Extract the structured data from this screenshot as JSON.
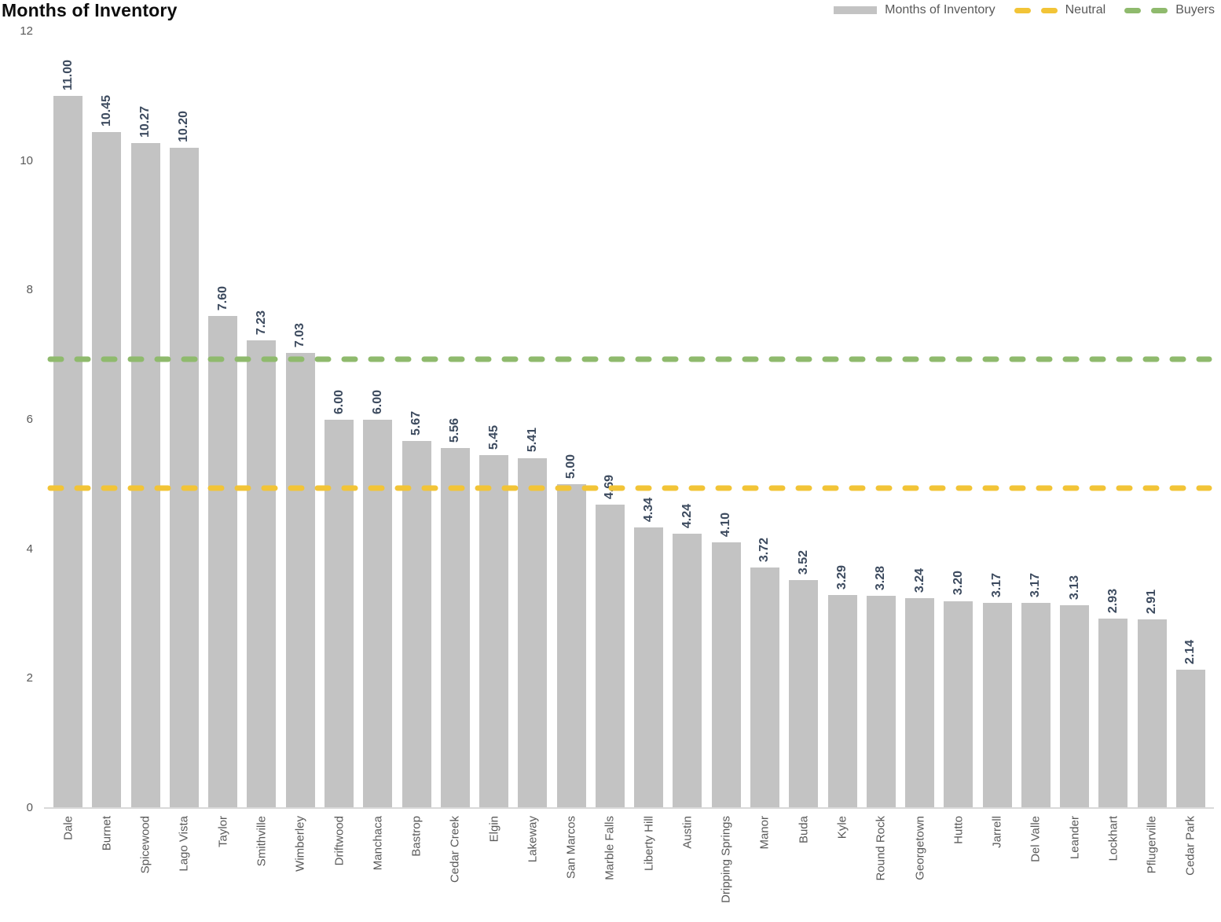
{
  "title": "Months of Inventory",
  "legend": [
    {
      "label": "Months of Inventory",
      "type": "bar-swatch",
      "color": "#c3c3c3"
    },
    {
      "label": "Neutral",
      "type": "dash",
      "color": "#f2c437"
    },
    {
      "label": "Buyers",
      "type": "dash",
      "color": "#8fba6d"
    }
  ],
  "chart_data": {
    "type": "bar",
    "title": "Months of Inventory",
    "categories": [
      "Dale",
      "Burnet",
      "Spicewood",
      "Lago Vista",
      "Taylor",
      "Smithville",
      "Wimberley",
      "Driftwood",
      "Manchaca",
      "Bastrop",
      "Cedar Creek",
      "Elgin",
      "Lakeway",
      "San Marcos",
      "Marble Falls",
      "Liberty Hill",
      "Austin",
      "Dripping Springs",
      "Manor",
      "Buda",
      "Kyle",
      "Round Rock",
      "Georgetown",
      "Hutto",
      "Jarrell",
      "Del Valle",
      "Leander",
      "Lockhart",
      "Pflugerville",
      "Cedar Park"
    ],
    "values": [
      11.0,
      10.45,
      10.27,
      10.2,
      7.6,
      7.23,
      7.03,
      6.0,
      6.0,
      5.67,
      5.56,
      5.45,
      5.41,
      5.0,
      4.69,
      4.34,
      4.24,
      4.1,
      3.72,
      3.52,
      3.29,
      3.28,
      3.24,
      3.2,
      3.17,
      3.17,
      3.13,
      2.93,
      2.91,
      2.14
    ],
    "value_label_decimals": 2,
    "xlabel": "",
    "ylabel": "",
    "ylim": [
      0,
      12
    ],
    "yticks": [
      0,
      2,
      4,
      6,
      8,
      10,
      12
    ],
    "grid": false,
    "bar_color": "#c3c3c3",
    "value_label_color": "#3d4b5f",
    "axis_text_color": "#595959",
    "legend_position": "top-right",
    "label_rotation_deg": 90,
    "reference_lines": [
      {
        "name": "Neutral",
        "value": 5.0,
        "color": "#f2c437",
        "style": "dashed"
      },
      {
        "name": "Buyers",
        "value": 7.0,
        "color": "#8fba6d",
        "style": "dashed"
      }
    ]
  }
}
